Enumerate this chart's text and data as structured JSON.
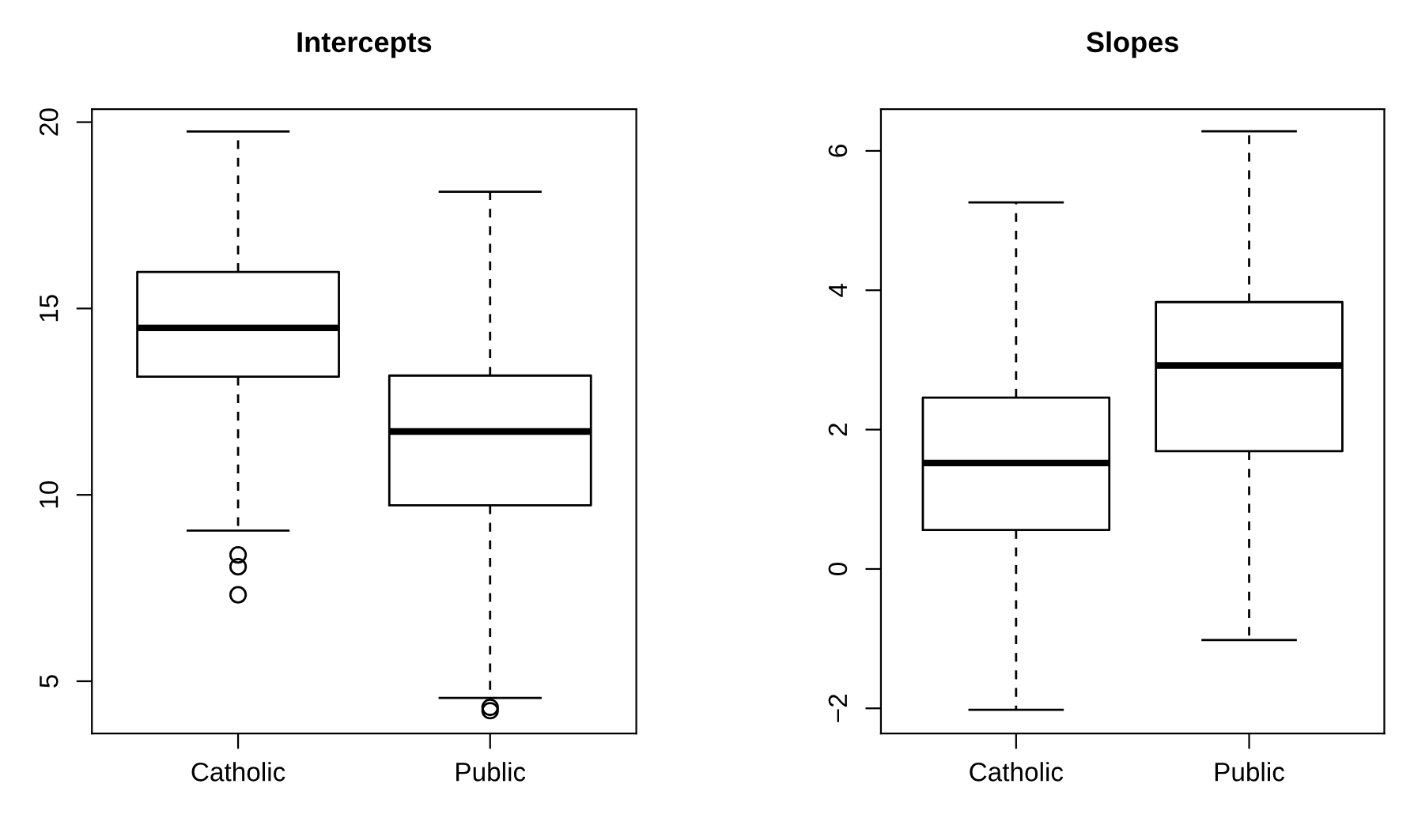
{
  "chart_data": [
    {
      "type": "box",
      "title": "Intercepts",
      "categories": [
        "Catholic",
        "Public"
      ],
      "ylim": [
        3.6,
        20.35
      ],
      "yticks": [
        5,
        10,
        15,
        20
      ],
      "grid": false,
      "legend": false,
      "boxes": [
        {
          "low": 9.04,
          "q1": 13.17,
          "median": 14.48,
          "q3": 15.98,
          "high": 19.75,
          "outliers": [
            8.39,
            8.07,
            7.32
          ]
        },
        {
          "low": 4.55,
          "q1": 9.72,
          "median": 11.7,
          "q3": 13.2,
          "high": 18.13,
          "outliers": [
            4.3,
            4.21
          ]
        }
      ]
    },
    {
      "type": "box",
      "title": "Slopes",
      "categories": [
        "Catholic",
        "Public"
      ],
      "ylim": [
        -2.36,
        6.6
      ],
      "yticks": [
        {
          "value": -2,
          "label": "−2"
        },
        0,
        2,
        4,
        6
      ],
      "grid": false,
      "legend": false,
      "boxes": [
        {
          "low": -2.02,
          "q1": 0.56,
          "median": 1.52,
          "q3": 2.46,
          "high": 5.26
        },
        {
          "low": -1.02,
          "q1": 1.69,
          "median": 2.92,
          "q3": 3.83,
          "high": 6.28
        }
      ]
    }
  ]
}
